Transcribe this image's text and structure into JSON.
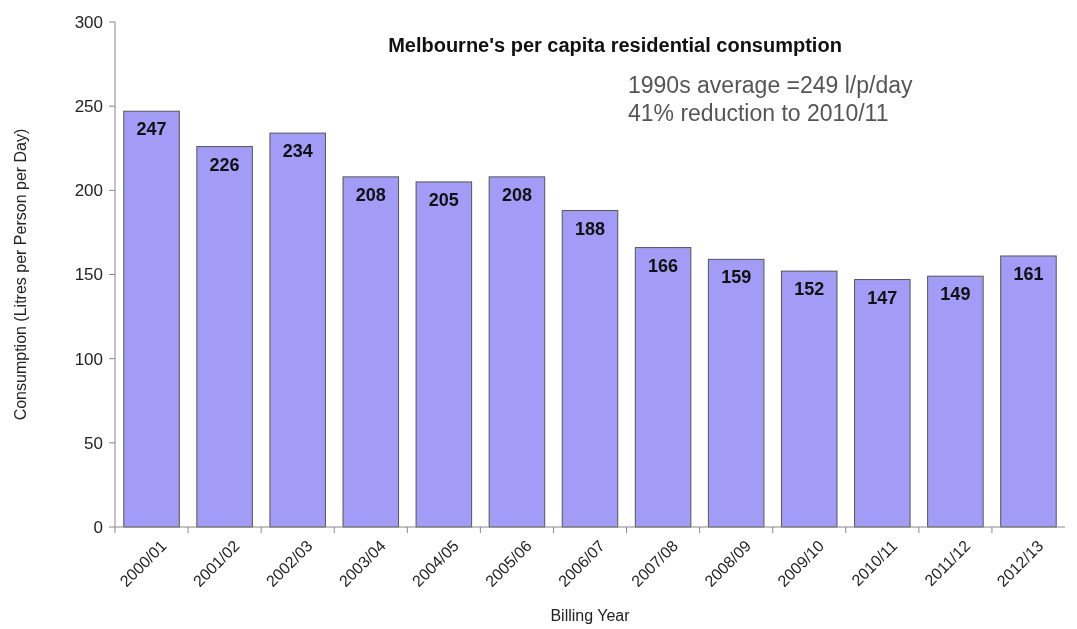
{
  "chart_data": {
    "type": "bar",
    "title": "Melbourne's per capita residential consumption",
    "xlabel": "Billing Year",
    "ylabel": "Consumption (Litres per Person per Day)",
    "annotations": [
      "1990s average =249 l/p/day",
      "41% reduction to 2010/11"
    ],
    "categories": [
      "2000/01",
      "2001/02",
      "2002/03",
      "2003/04",
      "2004/05",
      "2005/06",
      "2006/07",
      "2007/08",
      "2008/09",
      "2009/10",
      "2010/11",
      "2011/12",
      "2012/13"
    ],
    "values": [
      247,
      226,
      234,
      208,
      205,
      208,
      188,
      166,
      159,
      152,
      147,
      149,
      161
    ],
    "color": "#a29cf6",
    "ylim": [
      0,
      300
    ],
    "yticks": [
      0,
      50,
      100,
      150,
      200,
      250,
      300
    ],
    "data_labels": true
  }
}
